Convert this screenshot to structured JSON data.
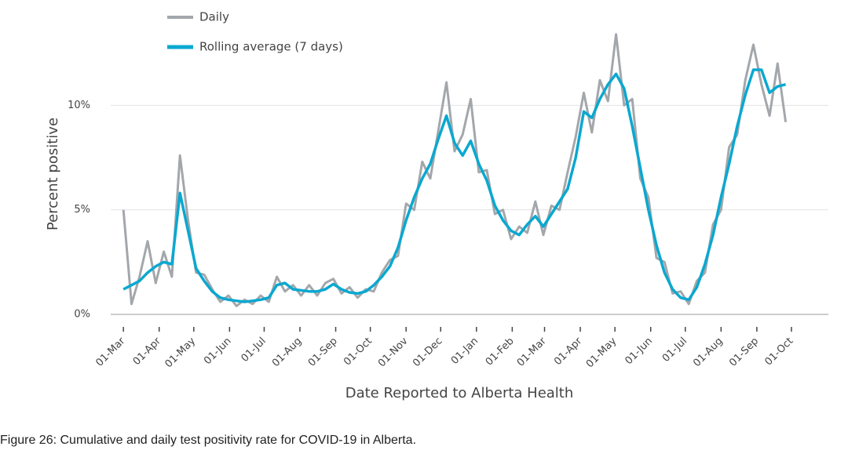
{
  "chart_data": {
    "type": "line",
    "x_label": "Date Reported to Alberta Health",
    "y_label": "Percent positive",
    "caption": "Figure 26: Cumulative and daily test positivity rate for COVID-19 in Alberta.",
    "x": [
      0,
      7,
      14,
      21,
      28,
      35,
      42,
      49,
      56,
      63,
      70,
      77,
      84,
      91,
      98,
      105,
      112,
      119,
      126,
      133,
      140,
      147,
      154,
      161,
      168,
      175,
      182,
      189,
      196,
      203,
      210,
      217,
      224,
      231,
      238,
      245,
      252,
      259,
      266,
      273,
      280,
      287,
      294,
      301,
      308,
      315,
      322,
      329,
      336,
      343,
      350,
      357,
      364,
      371,
      378,
      385,
      392,
      399,
      406,
      413,
      420,
      427,
      434,
      441,
      448,
      455,
      462,
      469,
      476,
      483,
      490,
      497,
      504,
      511,
      518,
      525,
      532,
      539,
      546,
      553,
      560,
      567,
      574
    ],
    "series": [
      {
        "name": "Daily",
        "color": "#a3a7ab",
        "values": [
          5.0,
          0.5,
          1.8,
          3.5,
          1.5,
          3.0,
          1.8,
          7.6,
          4.5,
          2.0,
          1.9,
          1.2,
          0.6,
          0.9,
          0.4,
          0.7,
          0.5,
          0.9,
          0.6,
          1.8,
          1.1,
          1.4,
          0.9,
          1.4,
          0.9,
          1.5,
          1.7,
          1.0,
          1.3,
          0.8,
          1.2,
          1.1,
          2.0,
          2.6,
          2.8,
          5.3,
          5.0,
          7.3,
          6.5,
          8.8,
          11.1,
          7.8,
          8.6,
          10.3,
          6.8,
          6.9,
          4.8,
          5.0,
          3.6,
          4.2,
          3.9,
          5.4,
          3.8,
          5.2,
          5.0,
          6.8,
          8.5,
          10.6,
          8.7,
          11.2,
          10.2,
          13.4,
          10.0,
          10.3,
          6.5,
          5.6,
          2.7,
          2.5,
          1.0,
          1.1,
          0.5,
          1.6,
          2.0,
          4.3,
          5.0,
          8.0,
          8.6,
          11.2,
          12.9,
          11.0,
          9.5,
          12.0,
          9.2
        ]
      },
      {
        "name": "Rolling average (7 days)",
        "color": "#0aa8d0",
        "values": [
          1.2,
          1.4,
          1.6,
          2.0,
          2.3,
          2.5,
          2.4,
          5.8,
          4.0,
          2.2,
          1.6,
          1.1,
          0.8,
          0.7,
          0.65,
          0.6,
          0.65,
          0.7,
          0.8,
          1.4,
          1.5,
          1.2,
          1.15,
          1.1,
          1.1,
          1.2,
          1.45,
          1.2,
          1.05,
          1.0,
          1.1,
          1.4,
          1.8,
          2.3,
          3.2,
          4.5,
          5.6,
          6.5,
          7.2,
          8.4,
          9.5,
          8.2,
          7.6,
          8.3,
          7.2,
          6.4,
          5.2,
          4.5,
          4.0,
          3.8,
          4.3,
          4.7,
          4.2,
          4.8,
          5.4,
          6.0,
          7.5,
          9.7,
          9.4,
          10.3,
          11.0,
          11.5,
          10.8,
          9.0,
          7.0,
          5.0,
          3.3,
          2.0,
          1.2,
          0.8,
          0.7,
          1.3,
          2.4,
          3.8,
          5.6,
          7.2,
          9.0,
          10.5,
          11.7,
          11.7,
          10.6,
          10.9,
          11.0
        ]
      }
    ],
    "xlim": [
      -11,
      611
    ],
    "xticks": [
      {
        "value": 0,
        "label": "01-Mar"
      },
      {
        "value": 31,
        "label": "01-Apr"
      },
      {
        "value": 61,
        "label": "01-May"
      },
      {
        "value": 92,
        "label": "01-Jun"
      },
      {
        "value": 122,
        "label": "01-Jul"
      },
      {
        "value": 153,
        "label": "01-Aug"
      },
      {
        "value": 184,
        "label": "01-Sep"
      },
      {
        "value": 214,
        "label": "01-Oct"
      },
      {
        "value": 245,
        "label": "01-Nov"
      },
      {
        "value": 275,
        "label": "01-Dec"
      },
      {
        "value": 306,
        "label": "01-Jan"
      },
      {
        "value": 337,
        "label": "01-Feb"
      },
      {
        "value": 365,
        "label": "01-Mar"
      },
      {
        "value": 396,
        "label": "01-Apr"
      },
      {
        "value": 426,
        "label": "01-May"
      },
      {
        "value": 457,
        "label": "01-Jun"
      },
      {
        "value": 487,
        "label": "01-Jul"
      },
      {
        "value": 518,
        "label": "01-Aug"
      },
      {
        "value": 549,
        "label": "01-Sep"
      },
      {
        "value": 579,
        "label": "01-Oct"
      }
    ],
    "ylim": [
      0,
      13.5
    ],
    "yticks": [
      {
        "value": 0,
        "label": "0%"
      },
      {
        "value": 5,
        "label": "5%"
      },
      {
        "value": 10,
        "label": "10%"
      }
    ],
    "grid": true
  }
}
